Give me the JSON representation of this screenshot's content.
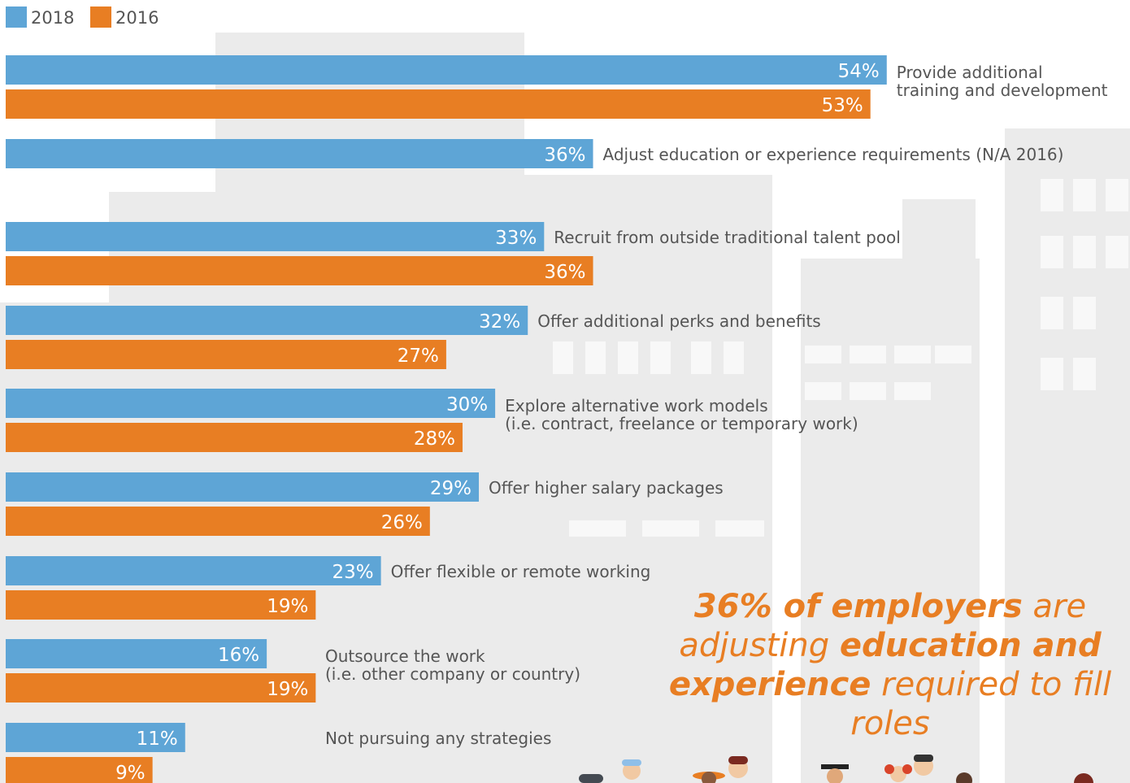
{
  "chart_data": {
    "type": "bar",
    "orientation": "horizontal",
    "categories": [
      [
        "Provide additional",
        "training and development"
      ],
      [
        "Adjust education or experience requirements (N/A 2016)"
      ],
      [
        "Recruit from outside traditional talent pool"
      ],
      [
        "Offer additional perks and benefits"
      ],
      [
        "Explore alternative work models",
        "(i.e. contract, freelance or temporary work)"
      ],
      [
        "Offer higher salary packages"
      ],
      [
        "Offer flexible or remote working"
      ],
      [
        "Outsource the work",
        "(i.e. other company or country)"
      ],
      [
        "Not pursuing any strategies"
      ]
    ],
    "series": [
      {
        "name": "2018",
        "color": "#5ea5d6",
        "values": [
          54,
          36,
          33,
          32,
          30,
          29,
          23,
          16,
          11
        ]
      },
      {
        "name": "2016",
        "color": "#e87e23",
        "values": [
          53,
          null,
          36,
          27,
          28,
          26,
          19,
          19,
          9
        ]
      }
    ],
    "value_suffix": "%",
    "legend_position": "top-left",
    "grid": false
  },
  "callout": {
    "parts": [
      {
        "text": "36% of employers",
        "bold": true
      },
      {
        "text": " are",
        "bold": false
      },
      {
        "text": "adjusting ",
        "bold": false,
        "break_before": true
      },
      {
        "text": "education and",
        "bold": true
      },
      {
        "text": "experience",
        "bold": true,
        "break_before": true
      },
      {
        "text": " required to fill roles",
        "bold": false
      }
    ]
  }
}
